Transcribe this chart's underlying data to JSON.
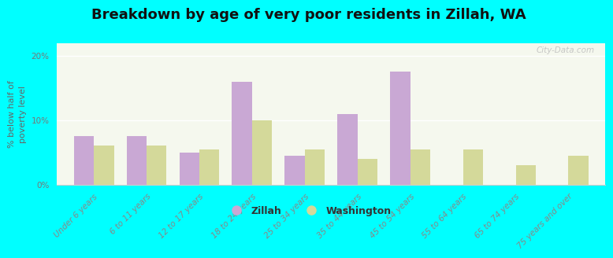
{
  "title": "Breakdown by age of very poor residents in Zillah, WA",
  "ylabel": "% below half of\npoverty level",
  "categories": [
    "Under 6 years",
    "6 to 11 years",
    "12 to 17 years",
    "18 to 24 years",
    "25 to 34 years",
    "35 to 44 years",
    "45 to 54 years",
    "55 to 64 years",
    "65 to 74 years",
    "75 years and over"
  ],
  "zillah": [
    7.5,
    7.5,
    5.0,
    16.0,
    4.5,
    11.0,
    17.5,
    0.0,
    0.0,
    0.0
  ],
  "washington": [
    6.0,
    6.0,
    5.5,
    10.0,
    5.5,
    4.0,
    5.5,
    5.5,
    3.0,
    4.5
  ],
  "zillah_color": "#c9a8d4",
  "washington_color": "#d4d99a",
  "background_outer": "#00ffff",
  "background_inner_top": "#e8f0d0",
  "background_inner_bottom": "#f5f8ee",
  "ylim": [
    0,
    22
  ],
  "yticks": [
    0,
    10,
    20
  ],
  "ytick_labels": [
    "0%",
    "10%",
    "20%"
  ],
  "bar_width": 0.38,
  "title_fontsize": 13,
  "axis_label_fontsize": 8,
  "tick_fontsize": 7.5,
  "legend_labels": [
    "Zillah",
    "Washington"
  ],
  "watermark": "City-Data.com"
}
